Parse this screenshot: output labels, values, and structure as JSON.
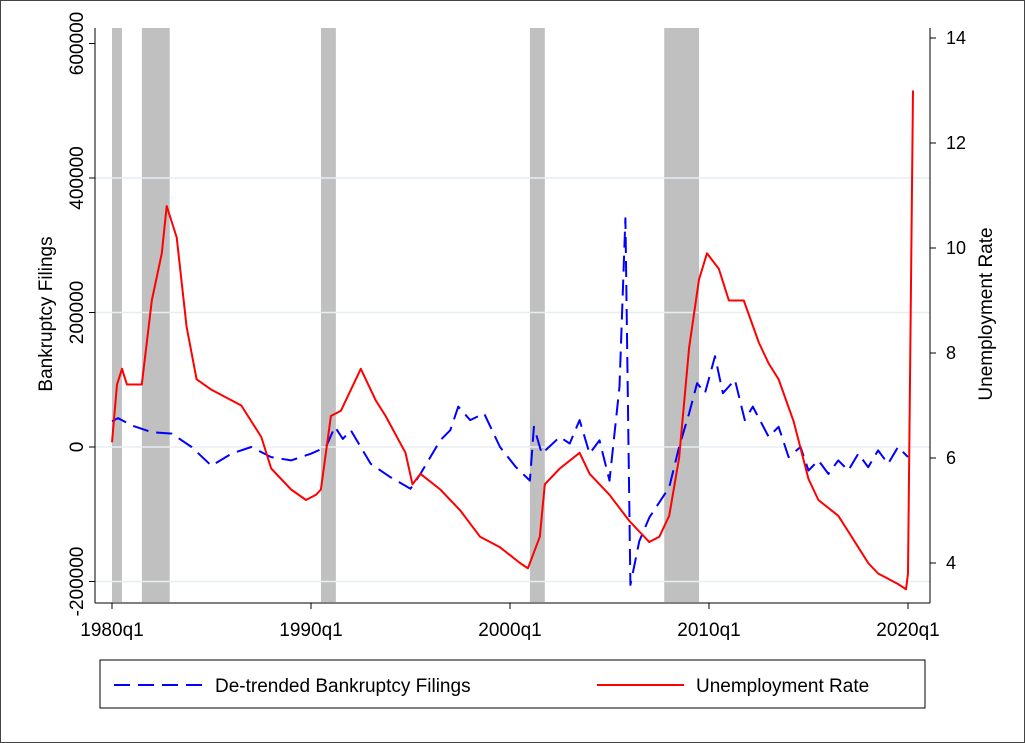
{
  "chart_data": {
    "type": "line",
    "title": "",
    "xlabel": "",
    "ylabel_left": "Bankruptcy Filings",
    "ylabel_right": "Unemployment Rate",
    "x_ticks": [
      {
        "year": 1980,
        "label": "1980q1"
      },
      {
        "year": 1990,
        "label": "1990q1"
      },
      {
        "year": 2000,
        "label": "2000q1"
      },
      {
        "year": 2010,
        "label": "2010q1"
      },
      {
        "year": 2020,
        "label": "2020q1"
      }
    ],
    "left_ticks": [
      {
        "value": -200000,
        "label": "-200000"
      },
      {
        "value": 0,
        "label": "0"
      },
      {
        "value": 200000,
        "label": "200000"
      },
      {
        "value": 400000,
        "label": "400000"
      },
      {
        "value": 600000,
        "label": "600000"
      }
    ],
    "right_ticks": [
      {
        "value": 4,
        "label": "4"
      },
      {
        "value": 6,
        "label": "6"
      },
      {
        "value": 8,
        "label": "8"
      },
      {
        "value": 10,
        "label": "10"
      },
      {
        "value": 12,
        "label": "12"
      },
      {
        "value": 14,
        "label": "14"
      }
    ],
    "recessions": [
      [
        1980.0,
        1980.5
      ],
      [
        1981.5,
        1982.9
      ],
      [
        1990.5,
        1991.25
      ],
      [
        2001.0,
        2001.75
      ],
      [
        2007.75,
        2009.5
      ]
    ],
    "recession_color": "#c0c0c0",
    "legend_position": "bottom",
    "series": [
      {
        "name": "De-trended Bankruptcy Filings",
        "axis": "left",
        "color": "#0000ff",
        "style": "dashed",
        "points": [
          [
            1980.0,
            38000
          ],
          [
            1980.3,
            43000
          ],
          [
            1981,
            32000
          ],
          [
            1982,
            22000
          ],
          [
            1983,
            20000
          ],
          [
            1984,
            0
          ],
          [
            1985,
            -28000
          ],
          [
            1986,
            -10000
          ],
          [
            1987,
            0
          ],
          [
            1988,
            -15000
          ],
          [
            1989,
            -20000
          ],
          [
            1990,
            -10000
          ],
          [
            1990.75,
            0
          ],
          [
            1991.2,
            30000
          ],
          [
            1991.6,
            12000
          ],
          [
            1992,
            25000
          ],
          [
            1993,
            -25000
          ],
          [
            1994,
            -45000
          ],
          [
            1995,
            -62000
          ],
          [
            1995.5,
            -40000
          ],
          [
            1996.5,
            10000
          ],
          [
            1997,
            25000
          ],
          [
            1997.4,
            60000
          ],
          [
            1998,
            40000
          ],
          [
            1998.7,
            50000
          ],
          [
            1999.5,
            0
          ],
          [
            2000.3,
            -30000
          ],
          [
            2001,
            -50000
          ],
          [
            2001.2,
            30000
          ],
          [
            2001.6,
            -10000
          ],
          [
            2002.5,
            15000
          ],
          [
            2003,
            5000
          ],
          [
            2003.5,
            40000
          ],
          [
            2004,
            -10000
          ],
          [
            2004.5,
            10000
          ],
          [
            2005,
            -50000
          ],
          [
            2005.5,
            90000
          ],
          [
            2005.8,
            340000
          ],
          [
            2006.05,
            -205000
          ],
          [
            2006.5,
            -140000
          ],
          [
            2007,
            -105000
          ],
          [
            2008,
            -60000
          ],
          [
            2008.5,
            0
          ],
          [
            2009,
            50000
          ],
          [
            2009.4,
            95000
          ],
          [
            2009.8,
            80000
          ],
          [
            2010.3,
            135000
          ],
          [
            2010.7,
            80000
          ],
          [
            2011.3,
            100000
          ],
          [
            2011.8,
            40000
          ],
          [
            2012.2,
            60000
          ],
          [
            2013,
            15000
          ],
          [
            2013.5,
            30000
          ],
          [
            2014,
            -15000
          ],
          [
            2014.6,
            0
          ],
          [
            2015,
            -35000
          ],
          [
            2015.5,
            -20000
          ],
          [
            2016,
            -40000
          ],
          [
            2016.5,
            -20000
          ],
          [
            2017,
            -35000
          ],
          [
            2017.5,
            -10000
          ],
          [
            2018,
            -30000
          ],
          [
            2018.5,
            -5000
          ],
          [
            2019,
            -25000
          ],
          [
            2019.5,
            0
          ],
          [
            2020,
            -15000
          ]
        ]
      },
      {
        "name": "Unemployment Rate",
        "axis": "right",
        "color": "#ff0000",
        "style": "solid",
        "points": [
          [
            1980.0,
            6.3
          ],
          [
            1980.25,
            7.4
          ],
          [
            1980.5,
            7.7
          ],
          [
            1980.75,
            7.4
          ],
          [
            1981.5,
            7.4
          ],
          [
            1982.0,
            9.0
          ],
          [
            1982.5,
            9.9
          ],
          [
            1982.75,
            10.8
          ],
          [
            1983.25,
            10.2
          ],
          [
            1983.75,
            8.5
          ],
          [
            1984.25,
            7.5
          ],
          [
            1985,
            7.3
          ],
          [
            1985.5,
            7.2
          ],
          [
            1986.5,
            7.0
          ],
          [
            1987.5,
            6.4
          ],
          [
            1988,
            5.8
          ],
          [
            1989,
            5.4
          ],
          [
            1989.75,
            5.2
          ],
          [
            1990.25,
            5.3
          ],
          [
            1990.5,
            5.4
          ],
          [
            1991.0,
            6.8
          ],
          [
            1991.5,
            6.9
          ],
          [
            1992.5,
            7.7
          ],
          [
            1993.25,
            7.1
          ],
          [
            1993.75,
            6.8
          ],
          [
            1994.75,
            6.1
          ],
          [
            1995.1,
            5.5
          ],
          [
            1995.5,
            5.7
          ],
          [
            1996.5,
            5.4
          ],
          [
            1997.5,
            5.0
          ],
          [
            1998.5,
            4.5
          ],
          [
            1999.5,
            4.3
          ],
          [
            2000.5,
            4.0
          ],
          [
            2000.9,
            3.9
          ],
          [
            2001.5,
            4.5
          ],
          [
            2001.75,
            5.5
          ],
          [
            2002.5,
            5.8
          ],
          [
            2003.5,
            6.1
          ],
          [
            2004,
            5.7
          ],
          [
            2005,
            5.3
          ],
          [
            2006,
            4.8
          ],
          [
            2006.5,
            4.6
          ],
          [
            2007,
            4.4
          ],
          [
            2007.5,
            4.5
          ],
          [
            2008,
            4.9
          ],
          [
            2008.5,
            6.0
          ],
          [
            2009,
            8.1
          ],
          [
            2009.5,
            9.4
          ],
          [
            2009.9,
            9.9
          ],
          [
            2010.5,
            9.6
          ],
          [
            2011,
            9.0
          ],
          [
            2011.75,
            9.0
          ],
          [
            2012.5,
            8.2
          ],
          [
            2013,
            7.8
          ],
          [
            2013.5,
            7.5
          ],
          [
            2014.25,
            6.7
          ],
          [
            2015,
            5.6
          ],
          [
            2015.5,
            5.2
          ],
          [
            2016.5,
            4.9
          ],
          [
            2017,
            4.6
          ],
          [
            2017.5,
            4.3
          ],
          [
            2018,
            4.0
          ],
          [
            2018.5,
            3.8
          ],
          [
            2019,
            3.7
          ],
          [
            2019.5,
            3.6
          ],
          [
            2019.9,
            3.5
          ],
          [
            2020.0,
            3.8
          ],
          [
            2020.25,
            13.0
          ]
        ]
      }
    ]
  },
  "legend": {
    "items": [
      "De-trended Bankruptcy Filings",
      "Unemployment Rate"
    ]
  }
}
